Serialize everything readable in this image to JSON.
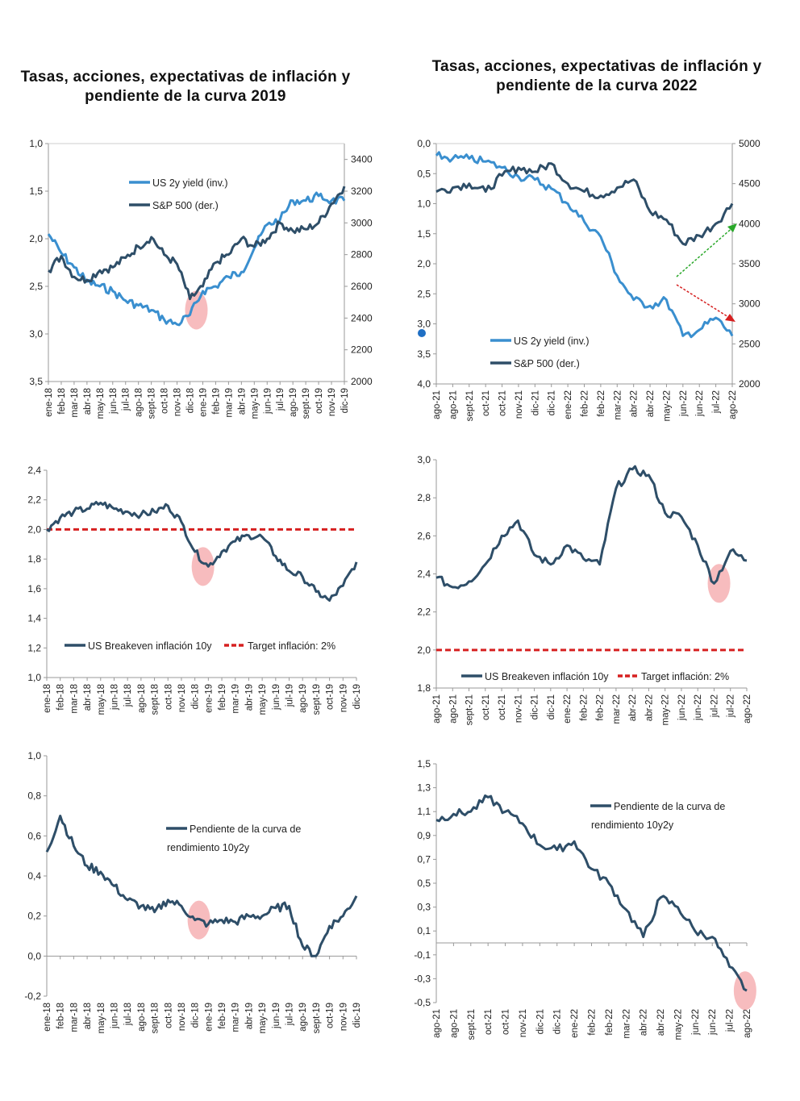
{
  "titles": {
    "left": "Tasas, acciones, expectativas de inflación y pendiente de la curva 2019",
    "right": "Tasas, acciones, expectativas de inflación y pendiente de la curva 2022"
  },
  "colors": {
    "yield": "#3a8fcf",
    "dark": "#2e4e68",
    "target": "#d62020",
    "highlight": "#f4a6a8",
    "up_arrow": "#2aa82a",
    "down_arrow": "#d62020"
  },
  "chart_data": [
    {
      "id": "c2019a",
      "type": "line",
      "x": [
        "ene-18",
        "feb-18",
        "mar-18",
        "abr-18",
        "may-18",
        "jun-18",
        "jul-18",
        "ago-18",
        "sept-18",
        "oct-18",
        "nov-18",
        "dic-18",
        "ene-19",
        "feb-19",
        "mar-19",
        "abr-19",
        "may-19",
        "jun-19",
        "jul-19",
        "ago-19",
        "sept-19",
        "oct-19",
        "nov-19",
        "dic-19"
      ],
      "y_left": {
        "ticks": [
          "1,0",
          "1,5",
          "2,0",
          "2,5",
          "3,0",
          "3,5"
        ],
        "min": 1.0,
        "max": 3.5,
        "inverted": true
      },
      "y_right": {
        "ticks": [
          "2000",
          "2200",
          "2400",
          "2600",
          "2800",
          "3000",
          "3200",
          "3400"
        ],
        "min": 2000,
        "max": 3500
      },
      "series": [
        {
          "name": "US 2y yield (inv.)",
          "axis": "left",
          "color": "yield",
          "values": [
            1.95,
            2.15,
            2.3,
            2.45,
            2.5,
            2.55,
            2.65,
            2.7,
            2.75,
            2.85,
            2.9,
            2.8,
            2.55,
            2.5,
            2.4,
            2.35,
            2.1,
            1.85,
            1.8,
            1.6,
            1.6,
            1.55,
            1.6,
            1.6
          ]
        },
        {
          "name": "S&P 500 (der.)",
          "axis": "right",
          "color": "dark",
          "values": [
            2700,
            2790,
            2660,
            2640,
            2700,
            2720,
            2780,
            2850,
            2910,
            2800,
            2740,
            2520,
            2600,
            2750,
            2800,
            2900,
            2850,
            2900,
            3000,
            2950,
            2960,
            3000,
            3120,
            3230
          ]
        }
      ],
      "highlight_x": 11.5,
      "legend": "top-left"
    },
    {
      "id": "c2022a",
      "type": "line",
      "x": [
        "ago-21",
        "ago-21",
        "sept-21",
        "oct-21",
        "oct-21",
        "nov-21",
        "dic-21",
        "dic-21",
        "ene-22",
        "feb-22",
        "feb-22",
        "mar-22",
        "abr-22",
        "abr-22",
        "may-22",
        "jun-22",
        "jun-22",
        "jul-22",
        "ago-22"
      ],
      "y_left": {
        "ticks": [
          "0,0",
          "0,5",
          "1,0",
          "1,5",
          "2,0",
          "2,5",
          "3,0",
          "3,5",
          "4,0"
        ],
        "min": 0.0,
        "max": 4.0,
        "inverted": true
      },
      "y_right": {
        "ticks": [
          "2000",
          "2500",
          "3000",
          "3500",
          "4000",
          "4500",
          "5000"
        ],
        "min": 2000,
        "max": 5000
      },
      "series": [
        {
          "name": "US 2y yield (inv.)",
          "axis": "left",
          "color": "yield",
          "values": [
            0.2,
            0.25,
            0.25,
            0.3,
            0.4,
            0.55,
            0.6,
            0.75,
            1.0,
            1.3,
            1.55,
            2.2,
            2.6,
            2.7,
            2.6,
            3.2,
            3.1,
            2.9,
            3.2
          ]
        },
        {
          "name": "S&P 500 (der.)",
          "axis": "right",
          "color": "dark",
          "values": [
            4400,
            4450,
            4500,
            4400,
            4600,
            4700,
            4650,
            4750,
            4500,
            4400,
            4350,
            4450,
            4550,
            4150,
            4050,
            3750,
            3850,
            4000,
            4250
          ]
        }
      ],
      "arrows": [
        "up",
        "down"
      ],
      "legend": "bottom-left"
    },
    {
      "id": "c2019b",
      "type": "line",
      "x": [
        "ene-18",
        "feb-18",
        "mar-18",
        "abr-18",
        "may-18",
        "jun-18",
        "jul-18",
        "ago-18",
        "sept-18",
        "oct-18",
        "nov-18",
        "dic-18",
        "ene-19",
        "feb-19",
        "mar-19",
        "abr-19",
        "may-19",
        "jun-19",
        "jul-19",
        "ago-19",
        "sept-19",
        "oct-19",
        "nov-19",
        "dic-19"
      ],
      "y": {
        "ticks": [
          "1,0",
          "1,2",
          "1,4",
          "1,6",
          "1,8",
          "2,0",
          "2,2",
          "2,4"
        ],
        "min": 1.0,
        "max": 2.4
      },
      "series": [
        {
          "name": "US Breakeven inflación 10y",
          "color": "dark",
          "values": [
            2.0,
            2.08,
            2.12,
            2.14,
            2.18,
            2.14,
            2.12,
            2.1,
            2.12,
            2.16,
            2.05,
            1.85,
            1.75,
            1.85,
            1.92,
            1.96,
            1.95,
            1.82,
            1.72,
            1.68,
            1.58,
            1.52,
            1.62,
            1.78
          ]
        }
      ],
      "target": {
        "name": "Target inflación: 2%",
        "value": 2.0
      },
      "highlight_x": 11.6,
      "legend": "bottom"
    },
    {
      "id": "c2022b",
      "type": "line",
      "x": [
        "ago-21",
        "ago-21",
        "sept-21",
        "oct-21",
        "oct-21",
        "nov-21",
        "dic-21",
        "dic-21",
        "ene-22",
        "feb-22",
        "feb-22",
        "mar-22",
        "abr-22",
        "abr-22",
        "may-22",
        "jun-22",
        "jun-22",
        "jul-22",
        "jul-22",
        "ago-22"
      ],
      "y": {
        "ticks": [
          "1,8",
          "2,0",
          "2,2",
          "2,4",
          "2,6",
          "2,8",
          "3,0"
        ],
        "min": 1.8,
        "max": 3.0
      },
      "series": [
        {
          "name": "US Breakeven inflación 10y",
          "color": "dark",
          "values": [
            2.38,
            2.33,
            2.36,
            2.45,
            2.6,
            2.68,
            2.5,
            2.45,
            2.55,
            2.48,
            2.45,
            2.85,
            2.95,
            2.92,
            2.72,
            2.7,
            2.55,
            2.35,
            2.52,
            2.47
          ]
        }
      ],
      "target": {
        "name": "Target inflación: 2%",
        "value": 2.0
      },
      "highlight_x": 17.3,
      "legend": "bottom"
    },
    {
      "id": "c2019c",
      "type": "line",
      "x": [
        "ene-18",
        "feb-18",
        "mar-18",
        "abr-18",
        "may-18",
        "jun-18",
        "jul-18",
        "ago-18",
        "sept-18",
        "oct-18",
        "nov-18",
        "dic-18",
        "ene-19",
        "feb-19",
        "mar-19",
        "abr-19",
        "may-19",
        "jun-19",
        "jul-19",
        "ago-19",
        "sept-19",
        "oct-19",
        "nov-19",
        "dic-19"
      ],
      "y": {
        "ticks": [
          "-0,2",
          "0,0",
          "0,2",
          "0,4",
          "0,6",
          "0,8",
          "1,0"
        ],
        "min": -0.2,
        "max": 1.0
      },
      "series": [
        {
          "name": "Pendiente de la curva de rendimiento 10y2y",
          "color": "dark",
          "values": [
            0.52,
            0.7,
            0.55,
            0.45,
            0.42,
            0.35,
            0.28,
            0.25,
            0.22,
            0.28,
            0.25,
            0.18,
            0.16,
            0.18,
            0.17,
            0.2,
            0.2,
            0.24,
            0.25,
            0.05,
            0.0,
            0.15,
            0.2,
            0.3
          ]
        }
      ],
      "highlight_x": 11.3,
      "legend": "top-center"
    },
    {
      "id": "c2022c",
      "type": "line",
      "x": [
        "ago-21",
        "ago-21",
        "sept-21",
        "oct-21",
        "oct-21",
        "nov-21",
        "dic-21",
        "dic-21",
        "ene-22",
        "feb-22",
        "feb-22",
        "mar-22",
        "abr-22",
        "abr-22",
        "may-22",
        "jun-22",
        "jun-22",
        "jul-22",
        "ago-22"
      ],
      "y": {
        "ticks": [
          "-0,5",
          "-0,3",
          "-0,1",
          "0,1",
          "0,3",
          "0,5",
          "0,7",
          "0,9",
          "1,1",
          "1,3",
          "1,5"
        ],
        "min": -0.5,
        "max": 1.5
      },
      "series": [
        {
          "name": "Pendiente de la curva de rendimiento 10y2y",
          "color": "dark",
          "values": [
            1.03,
            1.08,
            1.1,
            1.22,
            1.1,
            1.0,
            0.82,
            0.78,
            0.85,
            0.62,
            0.5,
            0.28,
            0.05,
            0.38,
            0.3,
            0.1,
            0.05,
            -0.2,
            -0.4
          ]
        }
      ],
      "highlight_x": 17.9,
      "legend": "top-right"
    }
  ]
}
